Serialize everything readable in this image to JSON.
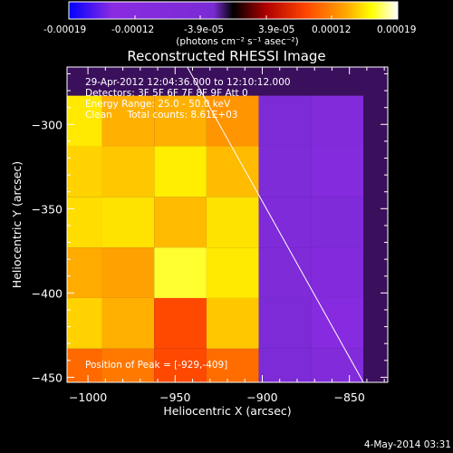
{
  "colorbar": {
    "ticks": [
      "-0.00019",
      "-0.00012",
      "-3.9e-05",
      "3.9e-05",
      "0.00012",
      "0.00019"
    ],
    "unit_label": "(photons cm⁻² s⁻¹ asec⁻²)",
    "colors": [
      "#0000ff",
      "#8a2be2",
      "#7a2bd4",
      "#000000",
      "#b00000",
      "#ff4500",
      "#ffa500",
      "#ffff00",
      "#ffffff"
    ]
  },
  "chart_data": {
    "type": "heatmap",
    "title": "Reconstructed RHESSI Image",
    "xlabel": "Heliocentric X (arcsec)",
    "ylabel": "Heliocentric Y (arcsec)",
    "xlim": [
      -1012,
      -828
    ],
    "ylim": [
      -453,
      -266
    ],
    "xticks": [
      -1000,
      -950,
      -900,
      -850
    ],
    "yticks": [
      -300,
      -350,
      -400,
      -450
    ],
    "xtick_labels": [
      "−1000",
      "−950",
      "−900",
      "−850"
    ],
    "ytick_labels": [
      "−300",
      "−350",
      "−400",
      "−450"
    ],
    "info_lines": [
      "29-Apr-2012 12:04:36.000 to 12:10:12.000",
      "Detectors: 3F 5F 6F 7F 8F 9F Att 0",
      "Energy Range: 25.0 - 50.0 keV",
      "Clean     Total counts: 8.61E+03"
    ],
    "peak_label": "Position of Peak = [-929,-409]",
    "limb_line": {
      "x": [
        -943,
        -842
      ],
      "y": [
        -266,
        -453
      ]
    },
    "cells": [
      [
        -1007,
        -448,
        0.53
      ],
      [
        -977,
        -448,
        0.57
      ],
      [
        -947,
        -448,
        0.45
      ],
      [
        -917,
        -448,
        0.54
      ],
      [
        -887,
        -448,
        -0.2
      ],
      [
        -857,
        -448,
        -0.42
      ],
      [
        -1007,
        -418,
        0.76
      ],
      [
        -977,
        -418,
        0.7
      ],
      [
        -947,
        -418,
        0.45
      ],
      [
        -917,
        -418,
        0.74
      ],
      [
        -887,
        -418,
        -0.2
      ],
      [
        -857,
        -418,
        -0.6
      ],
      [
        -1007,
        -388,
        0.69
      ],
      [
        -977,
        -388,
        0.67
      ],
      [
        -947,
        -388,
        0.87
      ],
      [
        -917,
        -388,
        0.8
      ],
      [
        -887,
        -388,
        -0.3
      ],
      [
        -857,
        -388,
        -0.48
      ],
      [
        -1007,
        -358,
        0.78
      ],
      [
        -977,
        -358,
        0.79
      ],
      [
        -947,
        -358,
        0.72
      ],
      [
        -917,
        -358,
        0.79
      ],
      [
        -887,
        -358,
        -0.33
      ],
      [
        -857,
        -358,
        -0.35
      ],
      [
        -1007,
        -328,
        0.76
      ],
      [
        -977,
        -328,
        0.74
      ],
      [
        -947,
        -328,
        0.81
      ],
      [
        -917,
        -328,
        0.72
      ],
      [
        -887,
        -328,
        -0.28
      ],
      [
        -857,
        -328,
        -0.5
      ],
      [
        -1007,
        -298,
        0.8
      ],
      [
        -977,
        -298,
        0.7
      ],
      [
        -947,
        -298,
        0.7
      ],
      [
        -917,
        -298,
        0.64
      ],
      [
        -887,
        -298,
        -0.2
      ],
      [
        -857,
        -298,
        -0.42
      ]
    ]
  },
  "footer": {
    "date": "4-May-2014 03:31"
  }
}
